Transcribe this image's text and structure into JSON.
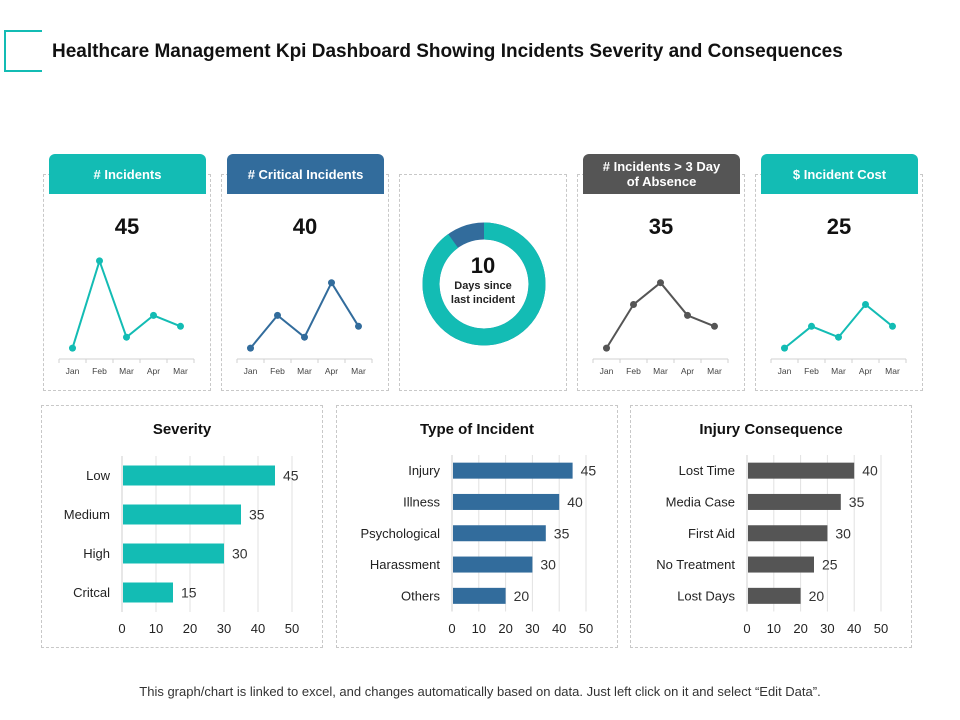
{
  "header": {
    "title": "Healthcare Management Kpi Dashboard Showing Incidents Severity and Consequences"
  },
  "colors": {
    "teal": "#13bcb4",
    "blue": "#326c9c",
    "gray": "#555555"
  },
  "kpis": [
    {
      "label": "# Incidents",
      "value": "45",
      "color": "#13bcb4"
    },
    {
      "label": "# Critical Incidents",
      "value": "40",
      "color": "#326c9c"
    },
    {
      "label": "# Incidents > 3 Day of Absence",
      "value": "35",
      "color": "#555555"
    },
    {
      "label": "$ Incident Cost",
      "value": "25",
      "color": "#13bcb4"
    }
  ],
  "donut": {
    "value": "10",
    "label": "Days since last incident",
    "fraction": 0.9
  },
  "footer": {
    "note": "This graph/chart is linked to excel, and changes automatically based on data. Just left click on it and select “Edit Data”."
  },
  "chart_data": [
    {
      "type": "line",
      "title": "# Incidents",
      "categories": [
        "Jan",
        "Feb",
        "Mar",
        "Apr",
        "Mar"
      ],
      "values": [
        1,
        9,
        2,
        4,
        3
      ],
      "ylim": [
        0,
        10
      ]
    },
    {
      "type": "line",
      "title": "# Critical Incidents",
      "categories": [
        "Jan",
        "Feb",
        "Mar",
        "Apr",
        "Mar"
      ],
      "values": [
        1,
        4,
        2,
        7,
        3
      ],
      "ylim": [
        0,
        10
      ]
    },
    {
      "type": "line",
      "title": "# Incidents > 3 Day of Absence",
      "categories": [
        "Jan",
        "Feb",
        "Mar",
        "Apr",
        "Mar"
      ],
      "values": [
        1,
        5,
        7,
        4,
        3
      ],
      "ylim": [
        0,
        10
      ]
    },
    {
      "type": "line",
      "title": "$ Incident Cost",
      "categories": [
        "Jan",
        "Feb",
        "Mar",
        "Apr",
        "Mar"
      ],
      "values": [
        1,
        3,
        2,
        5,
        3
      ],
      "ylim": [
        0,
        10
      ]
    },
    {
      "type": "bar",
      "title": "Severity",
      "categories": [
        "Low",
        "Medium",
        "High",
        "Critcal"
      ],
      "values": [
        45,
        35,
        30,
        15
      ],
      "xlim": [
        0,
        50
      ],
      "ticks": [
        "0",
        "10",
        "20",
        "30",
        "40",
        "50"
      ]
    },
    {
      "type": "bar",
      "title": "Type of Incident",
      "categories": [
        "Injury",
        "Illness",
        "Psychological",
        "Harassment",
        "Others"
      ],
      "values": [
        45,
        40,
        35,
        30,
        20
      ],
      "xlim": [
        0,
        50
      ],
      "ticks": [
        "0",
        "10",
        "20",
        "30",
        "40",
        "50"
      ]
    },
    {
      "type": "bar",
      "title": "Injury Consequence",
      "categories": [
        "Lost Time",
        "Media Case",
        "First Aid",
        "No Treatment",
        "Lost Days"
      ],
      "values": [
        40,
        35,
        30,
        25,
        20
      ],
      "xlim": [
        0,
        50
      ],
      "ticks": [
        "0",
        "10",
        "20",
        "30",
        "40",
        "50"
      ]
    }
  ]
}
